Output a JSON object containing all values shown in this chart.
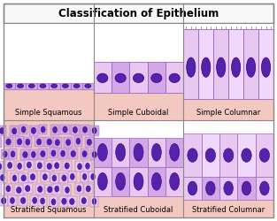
{
  "title": "Classification of Epithelium",
  "title_fontsize": 8.5,
  "label_fontsize": 6.0,
  "bg_color": "#ffffff",
  "border_color": "#888888",
  "tissue_pink": "#f2c8c0",
  "tissue_pink2": "#edd0c8",
  "cell_light": "#e8c8f0",
  "cell_mid": "#d4a8e8",
  "cell_dark": "#b888d8",
  "cell_border": "#9966bb",
  "nucleus_fill": "#5522aa",
  "nucleus_border": "#330088",
  "labels": [
    "Simple Squamous",
    "Simple Cuboidal",
    "Simple Columnar",
    "Stratified Squamous",
    "Stratified Cuboidal",
    "Stratified Columnar"
  ]
}
